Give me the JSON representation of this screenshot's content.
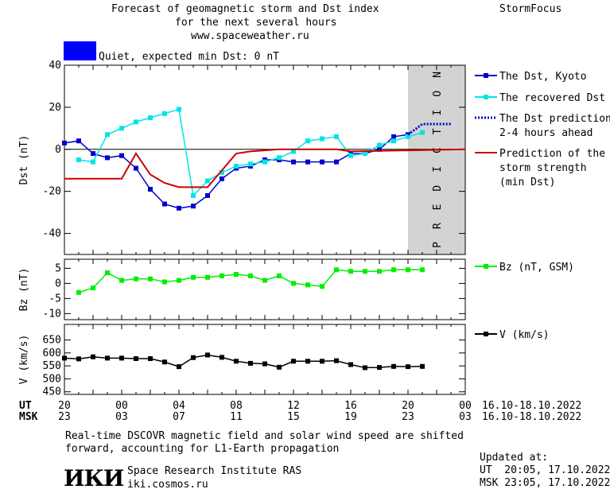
{
  "header": {
    "title_line1": "Forecast of geomagnetic storm and Dst index",
    "title_line2": "for the next several hours",
    "url": "www.spaceweather.ru",
    "brand": "StormFocus",
    "status_text": "Quiet, expected min Dst: 0 nT",
    "status_color": "#0000ff"
  },
  "footer": {
    "note_line1": "Real-time DSCOVR magnetic field and solar wind speed are shifted",
    "note_line2": "forward, accounting for L1-Earth propagation",
    "logo_text": "ИКИ",
    "institute": "Space Research Institute RAS",
    "site": "iki.cosmos.ru",
    "updated_label": "Updated at:",
    "updated_ut": "UT  20:05, 17.10.2022",
    "updated_msk": "MSK 23:05, 17.10.2022"
  },
  "chart_data": [
    {
      "type": "line",
      "ylabel": "Dst (nT)",
      "ylim": [
        -50,
        40
      ],
      "yticks": [
        40,
        20,
        0,
        -20,
        -40
      ],
      "xlim": [
        0,
        28
      ],
      "prediction_band": {
        "x": [
          24,
          28
        ],
        "label": "PREDICTION",
        "color": "#d3d3d3"
      },
      "series": [
        {
          "name": "The Dst, Kyoto",
          "color": "#0000cc",
          "marker": "square",
          "x": [
            0,
            1,
            2,
            3,
            4,
            5,
            6,
            7,
            8,
            9,
            10,
            11,
            12,
            13,
            14,
            15,
            16,
            17,
            18,
            19,
            20,
            21,
            22,
            23,
            24
          ],
          "values": [
            3,
            4,
            -2,
            -4,
            -3,
            -9,
            -19,
            -26,
            -28,
            -27,
            -22,
            -14,
            -9,
            -8,
            -5,
            -5,
            -6,
            -6,
            -6,
            -6,
            -2,
            -2,
            0,
            6,
            7
          ]
        },
        {
          "name": "The recovered Dst",
          "color": "#00e5e5",
          "marker": "square",
          "x": [
            1,
            2,
            3,
            4,
            5,
            6,
            7,
            8,
            9,
            10,
            11,
            12,
            13,
            14,
            15,
            16,
            17,
            18,
            19,
            20,
            21,
            22,
            23,
            24,
            25
          ],
          "values": [
            -5,
            -6,
            7,
            10,
            13,
            15,
            17,
            19,
            -22,
            -15,
            -11,
            -8,
            -7,
            -6,
            -4,
            -1,
            4,
            5,
            6,
            -3,
            -2,
            2,
            4,
            6,
            8
          ]
        },
        {
          "name": "The Dst prediction\n2-4 hours ahead",
          "color": "#0000cc",
          "style": "dotted",
          "x": [
            24,
            25,
            26,
            27
          ],
          "values": [
            7,
            12,
            12,
            12
          ]
        },
        {
          "name": "Prediction of the\nstorm strength\n(min Dst)",
          "color": "#cc0000",
          "style": "step",
          "x": [
            0,
            4,
            5,
            6,
            7,
            8,
            10,
            11,
            12,
            13,
            15,
            19,
            20,
            28
          ],
          "values": [
            -14,
            -14,
            -2,
            -12,
            -16,
            -18,
            -18,
            -10,
            -2,
            -1,
            0,
            0,
            -1,
            0
          ]
        }
      ]
    },
    {
      "type": "line",
      "ylabel": "Bz (nT)",
      "ylim": [
        -12,
        8
      ],
      "yticks": [
        5,
        0,
        -5,
        -10
      ],
      "xlim": [
        0,
        28
      ],
      "series": [
        {
          "name": "Bz (nT, GSM)",
          "color": "#00ee00",
          "marker": "square",
          "x": [
            1,
            2,
            3,
            4,
            5,
            6,
            7,
            8,
            9,
            10,
            11,
            12,
            13,
            14,
            15,
            16,
            17,
            18,
            19,
            20,
            21,
            22,
            23,
            24,
            25
          ],
          "values": [
            -3,
            -1.5,
            3.5,
            1,
            1.5,
            1.5,
            0.5,
            1,
            2,
            2,
            2.5,
            3,
            2.5,
            1,
            2.5,
            0,
            -0.5,
            -1,
            4.5,
            4,
            4,
            4,
            4.5,
            4.5,
            4.5
          ]
        }
      ]
    },
    {
      "type": "line",
      "ylabel": "V (km/s)",
      "ylim": [
        440,
        710
      ],
      "yticks": [
        650,
        600,
        550,
        500,
        450
      ],
      "xlim": [
        0,
        28
      ],
      "series": [
        {
          "name": "V (km/s)",
          "color": "#000000",
          "marker": "square",
          "x": [
            0,
            1,
            2,
            3,
            4,
            5,
            6,
            7,
            8,
            9,
            10,
            11,
            12,
            13,
            14,
            15,
            16,
            17,
            18,
            19,
            20,
            21,
            22,
            23,
            24,
            25
          ],
          "values": [
            580,
            577,
            585,
            580,
            580,
            578,
            578,
            565,
            547,
            582,
            592,
            583,
            568,
            560,
            558,
            545,
            568,
            568,
            568,
            570,
            555,
            543,
            544,
            548,
            547,
            548
          ]
        }
      ]
    }
  ],
  "x_axis": {
    "ut_label": "UT",
    "msk_label": "MSK",
    "ut_ticks": [
      "20",
      "00",
      "04",
      "08",
      "12",
      "16",
      "20",
      "00"
    ],
    "msk_ticks": [
      "23",
      "03",
      "07",
      "11",
      "15",
      "19",
      "23",
      "03"
    ],
    "date_range": "16.10-18.10.2022"
  }
}
